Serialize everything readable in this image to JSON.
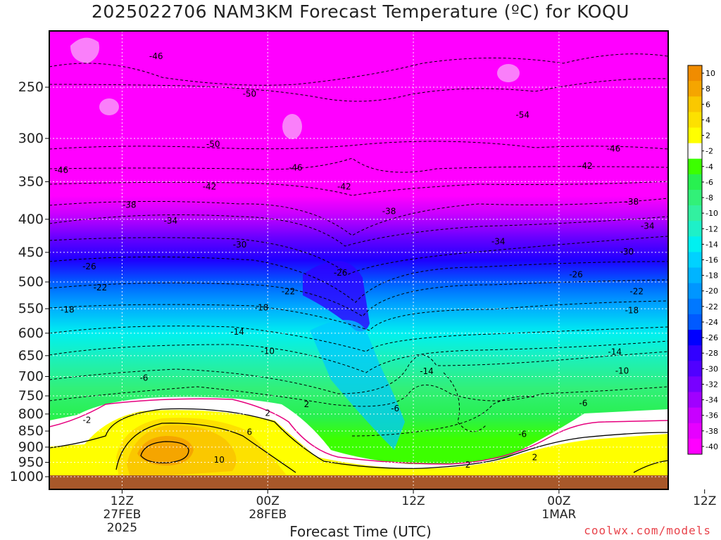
{
  "chart_data": {
    "type": "heatmap",
    "title": "2025022706 NAM3KM Forecast Temperature (ºC) for KOQU",
    "xlabel": "Forecast Time (UTC)",
    "ylabel": "",
    "credit": "coolwx.com/models",
    "y_axis": {
      "scale": "log",
      "reverse": true,
      "range_hpa": [
        1000,
        200
      ],
      "ticks": [
        250,
        300,
        350,
        400,
        450,
        500,
        550,
        600,
        650,
        700,
        750,
        800,
        850,
        900,
        950,
        1000
      ]
    },
    "x_axis": {
      "range_hours": [
        -6,
        45
      ],
      "ticks": [
        {
          "hour": 0,
          "label": "12Z",
          "date": "27FEB",
          "year": "2025"
        },
        {
          "hour": 12,
          "label": "00Z",
          "date": "28FEB",
          "year": ""
        },
        {
          "hour": 24,
          "label": "12Z",
          "date": "",
          "year": ""
        },
        {
          "hour": 36,
          "label": "00Z",
          "date": "1MAR",
          "year": ""
        },
        {
          "hour": 48,
          "label": "12Z",
          "date": "",
          "year": ""
        }
      ]
    },
    "grid": true,
    "colorbar": {
      "placement": "right",
      "levels": [
        10,
        8,
        6,
        4,
        2,
        -2,
        -4,
        -6,
        -8,
        -10,
        -12,
        -14,
        -16,
        -18,
        -20,
        -22,
        -24,
        -26,
        -28,
        -30,
        -32,
        -34,
        -36,
        -38,
        -40
      ],
      "colors": [
        "#f08c00",
        "#f5a500",
        "#fac800",
        "#fde100",
        "#ffff00",
        "#ffffff",
        "#3cff00",
        "#28f050",
        "#32f078",
        "#32f0a0",
        "#1ef0c8",
        "#00f0f0",
        "#00d2ff",
        "#00b4ff",
        "#0096ff",
        "#0078ff",
        "#005aff",
        "#0000ff",
        "#3200ff",
        "#5000ff",
        "#7800ff",
        "#a000ff",
        "#c800ff",
        "#e600ff",
        "#ff00ff"
      ]
    },
    "contour_labels": [
      {
        "value": "-46",
        "hour": 2.8,
        "hpa": 224
      },
      {
        "value": "-50",
        "hour": 10.5,
        "hpa": 256
      },
      {
        "value": "-54",
        "hour": 33.0,
        "hpa": 276
      },
      {
        "value": "-50",
        "hour": 7.5,
        "hpa": 306
      },
      {
        "value": "-46",
        "hour": 40.5,
        "hpa": 311
      },
      {
        "value": "-46",
        "hour": -5.0,
        "hpa": 336
      },
      {
        "value": "-46",
        "hour": 14.3,
        "hpa": 333
      },
      {
        "value": "-42",
        "hour": 38.2,
        "hpa": 331
      },
      {
        "value": "-42",
        "hour": 7.2,
        "hpa": 356
      },
      {
        "value": "-42",
        "hour": 18.3,
        "hpa": 356
      },
      {
        "value": "-38",
        "hour": 0.6,
        "hpa": 380
      },
      {
        "value": "-38",
        "hour": 22.0,
        "hpa": 389
      },
      {
        "value": "-38",
        "hour": 42.0,
        "hpa": 376
      },
      {
        "value": "-34",
        "hour": 4.0,
        "hpa": 402
      },
      {
        "value": "-34",
        "hour": 31.0,
        "hpa": 433
      },
      {
        "value": "-34",
        "hour": 43.3,
        "hpa": 410
      },
      {
        "value": "-30",
        "hour": 9.7,
        "hpa": 438
      },
      {
        "value": "-30",
        "hour": 41.6,
        "hpa": 449
      },
      {
        "value": "-26",
        "hour": -2.7,
        "hpa": 473
      },
      {
        "value": "-26",
        "hour": 18.0,
        "hpa": 484
      },
      {
        "value": "-26",
        "hour": 37.4,
        "hpa": 487
      },
      {
        "value": "-22",
        "hour": -1.8,
        "hpa": 510
      },
      {
        "value": "-22",
        "hour": 13.7,
        "hpa": 517
      },
      {
        "value": "-22",
        "hour": 42.4,
        "hpa": 517
      },
      {
        "value": "-18",
        "hour": -4.5,
        "hpa": 552
      },
      {
        "value": "-18",
        "hour": 11.5,
        "hpa": 548
      },
      {
        "value": "-18",
        "hour": 42.0,
        "hpa": 553
      },
      {
        "value": "-14",
        "hour": 9.5,
        "hpa": 597
      },
      {
        "value": "-14",
        "hour": 40.6,
        "hpa": 641
      },
      {
        "value": "-14",
        "hour": 25.1,
        "hpa": 687
      },
      {
        "value": "-10",
        "hour": 12.0,
        "hpa": 640
      },
      {
        "value": "-10",
        "hour": 41.2,
        "hpa": 686
      },
      {
        "value": "-6",
        "hour": 1.8,
        "hpa": 704
      },
      {
        "value": "-6",
        "hour": 22.5,
        "hpa": 784
      },
      {
        "value": "-6",
        "hour": 38.0,
        "hpa": 770
      },
      {
        "value": "-6",
        "hour": 33.0,
        "hpa": 860
      },
      {
        "value": "-2",
        "hour": -2.9,
        "hpa": 818
      },
      {
        "value": "2",
        "hour": 12.0,
        "hpa": 797
      },
      {
        "value": "2",
        "hour": 15.2,
        "hpa": 773
      },
      {
        "value": "6",
        "hour": 10.5,
        "hpa": 853
      },
      {
        "value": "10",
        "hour": 8.0,
        "hpa": 942
      },
      {
        "value": "2",
        "hour": 28.5,
        "hpa": 958
      },
      {
        "value": "2",
        "hour": 34.0,
        "hpa": 934
      }
    ]
  }
}
